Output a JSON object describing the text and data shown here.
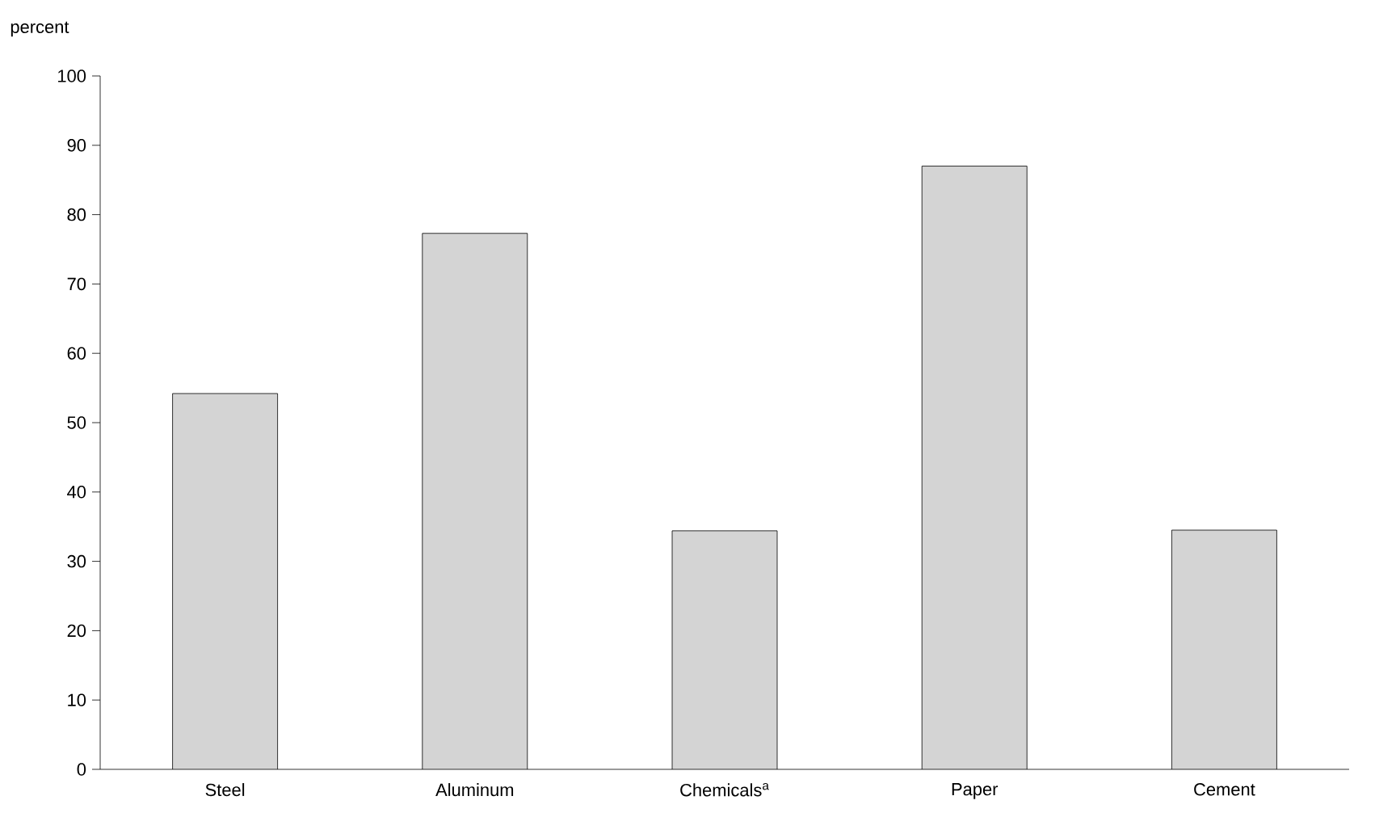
{
  "chart_data": {
    "type": "bar",
    "ylabel": "percent",
    "categories": [
      "Steel",
      "Aluminum",
      "Chemicals$^{a}$",
      "Paper",
      "Cement"
    ],
    "values": [
      54.2,
      77.3,
      34.4,
      87.0,
      34.5
    ],
    "color": "#d4d4d4",
    "ylim": [
      0,
      100
    ],
    "yticks": [
      0,
      10,
      20,
      30,
      40,
      50,
      60,
      70,
      80,
      90,
      100
    ],
    "grid": false
  }
}
